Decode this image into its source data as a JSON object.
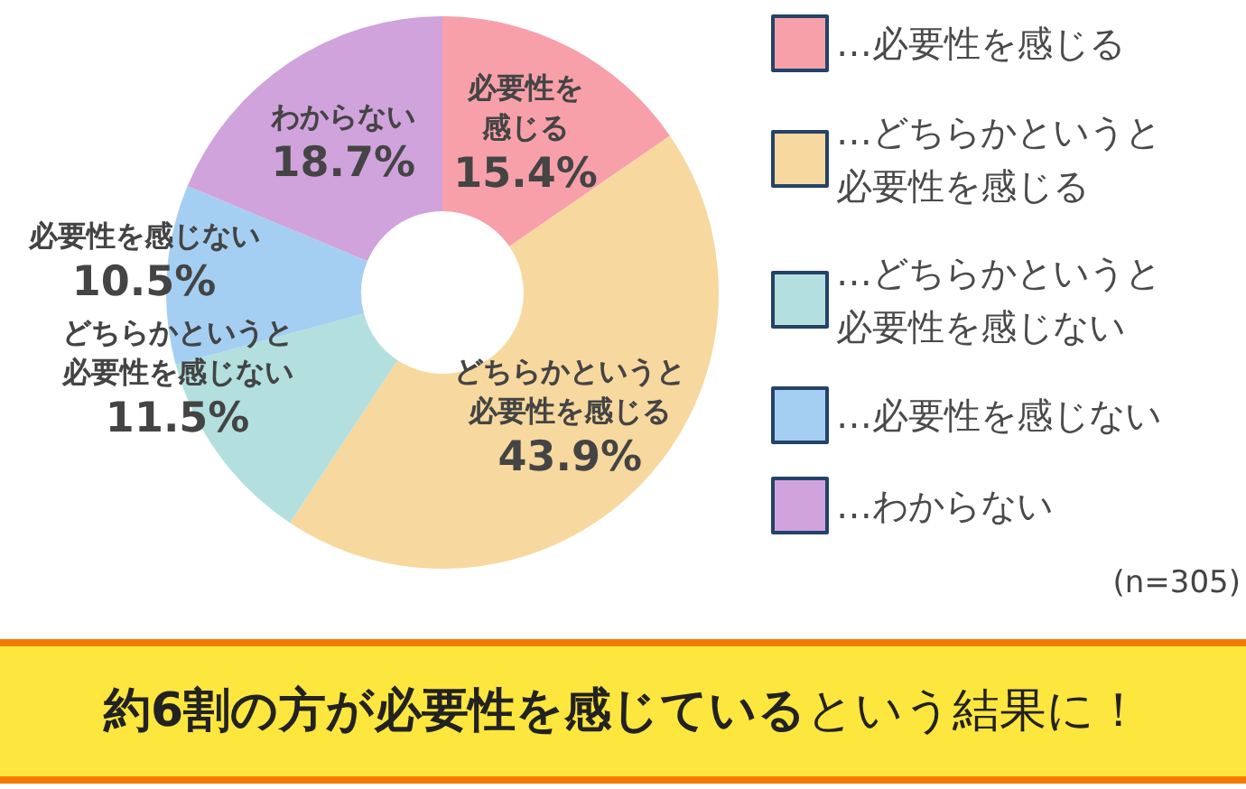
{
  "chart_data": {
    "type": "donut",
    "categories": [
      "…必要性を感じる",
      "…どちらかというと必要性を感じる",
      "…どちらかというと必要性を感じない",
      "…必要性を感じない",
      "…わからない"
    ],
    "values": [
      15.4,
      43.9,
      11.5,
      10.5,
      18.7
    ],
    "colors": [
      "#f7a0aa",
      "#f7d89e",
      "#b3dfdf",
      "#a5cff2",
      "#d0a3dc"
    ],
    "value_labels": [
      "必要性を感じる 15.4%",
      "どちらかというと必要性を感じる 43.9%",
      "どちらかというと必要性を感じない 11.5%",
      "必要性を感じない 10.5%",
      "わからない 18.7%"
    ],
    "legend": "right",
    "annotations": [
      "(n=305)",
      "約6割の方が必要性を感じている",
      "という結果に！"
    ]
  }
}
